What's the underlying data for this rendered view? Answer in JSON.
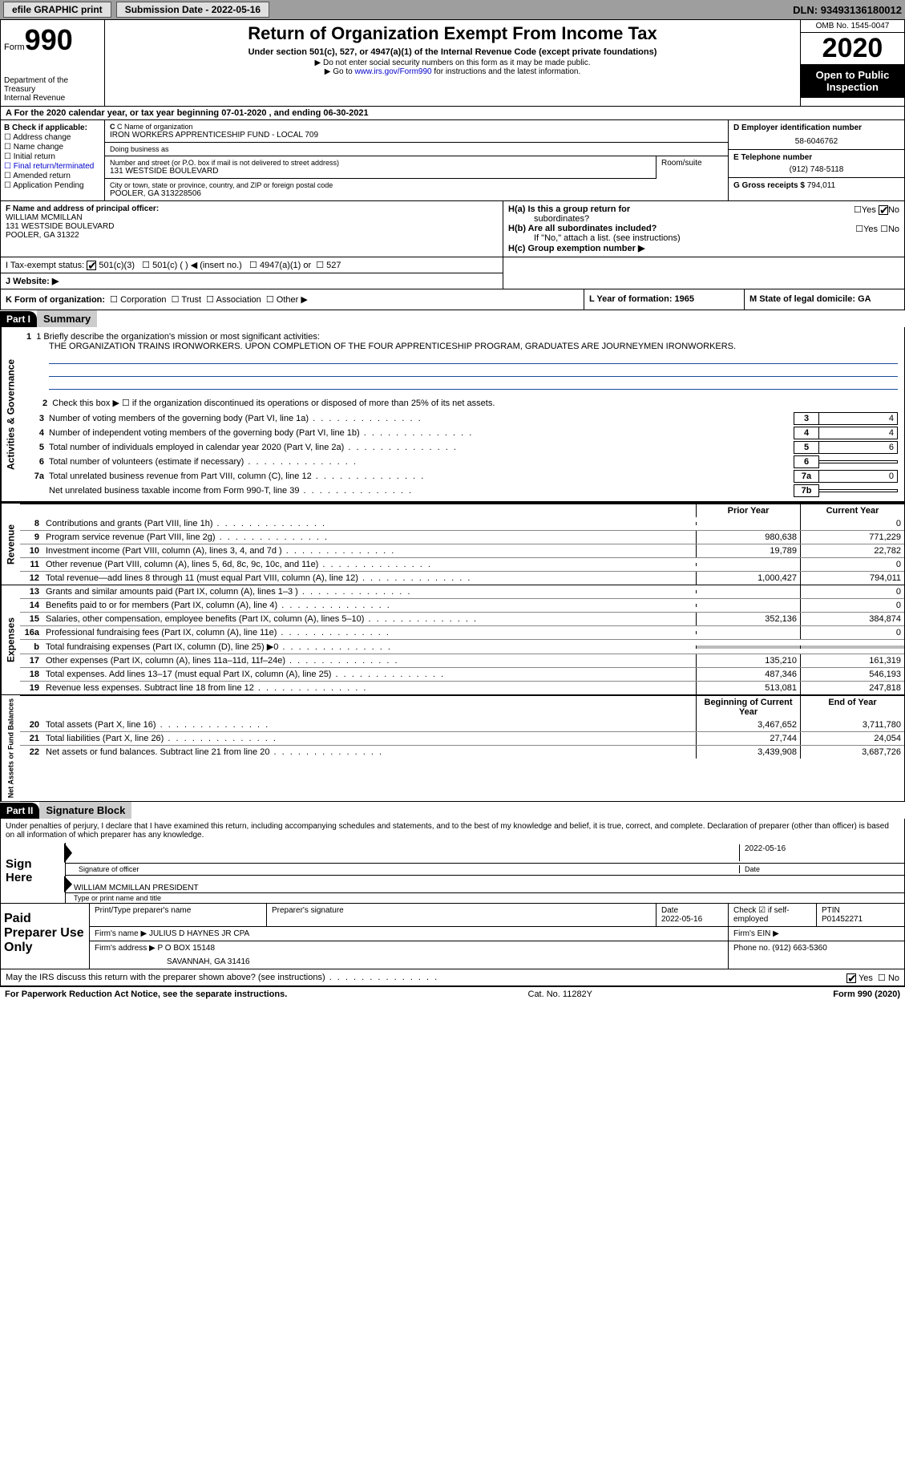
{
  "topbar": {
    "efile": "efile GRAPHIC print",
    "submission_label": "Submission Date - ",
    "submission_date": "2022-05-16",
    "dln_label": "DLN: ",
    "dln": "93493136180012"
  },
  "header": {
    "form_word": "Form",
    "form_num": "990",
    "dept1": "Department of the",
    "dept2": "Treasury",
    "dept3": "Internal Revenue",
    "title": "Return of Organization Exempt From Income Tax",
    "sub1": "Under section 501(c), 527, or 4947(a)(1) of the Internal Revenue Code (except private foundations)",
    "sub2": "▶ Do not enter social security numbers on this form as it may be made public.",
    "sub3a": "▶ Go to ",
    "sub3_link": "www.irs.gov/Form990",
    "sub3b": " for instructions and the latest information.",
    "omb": "OMB No. 1545-0047",
    "year": "2020",
    "inspect1": "Open to Public",
    "inspect2": "Inspection"
  },
  "rowA": "A For the 2020 calendar year, or tax year beginning 07-01-2020   , and ending 06-30-2021",
  "boxB": {
    "title": "B Check if applicable:",
    "opts": [
      "Address change",
      "Name change",
      "Initial return",
      "Final return/terminated",
      "Amended return",
      "Application Pending"
    ]
  },
  "boxC": {
    "lbl_name": "C Name of organization",
    "org_name": "IRON WORKERS APPRENTICESHIP FUND - LOCAL 709",
    "lbl_dba": "Doing business as",
    "dba": "",
    "lbl_addr": "Number and street (or P.O. box if mail is not delivered to street address)",
    "addr": "131 WESTSIDE BOULEVARD",
    "lbl_room": "Room/suite",
    "room": "",
    "lbl_city": "City or town, state or province, country, and ZIP or foreign postal code",
    "city": "POOLER, GA  313228506"
  },
  "boxD": {
    "lbl_ein": "D Employer identification number",
    "ein": "58-6046762",
    "lbl_tel": "E Telephone number",
    "tel": "(912) 748-5118",
    "lbl_gross": "G Gross receipts $ ",
    "gross": "794,011"
  },
  "boxF": {
    "lbl": "F  Name and address of principal officer:",
    "name": "WILLIAM MCMILLAN",
    "addr1": "131 WESTSIDE BOULEVARD",
    "addr2": "POOLER, GA  31322"
  },
  "boxH": {
    "ha": "H(a)  Is this a group return for",
    "ha2": "subordinates?",
    "hb": "H(b)  Are all subordinates included?",
    "hb_note": "If \"No,\" attach a list. (see instructions)",
    "hc": "H(c)  Group exemption number ▶",
    "yes": "Yes",
    "no": "No"
  },
  "rowI": {
    "lbl": "I    Tax-exempt status:",
    "o1": "501(c)(3)",
    "o2": "501(c) (  ) ◀ (insert no.)",
    "o3": "4947(a)(1) or",
    "o4": "527"
  },
  "rowJ": "J   Website: ▶",
  "rowK": {
    "k": "K Form of organization:",
    "opts": [
      "Corporation",
      "Trust",
      "Association",
      "Other ▶"
    ],
    "l": "L Year of formation: 1965",
    "m": "M State of legal domicile: GA"
  },
  "part1": {
    "hdr": "Part I",
    "title": "Summary",
    "q1_lbl": "1  Briefly describe the organization's mission or most significant activities:",
    "q1_text": "THE ORGANIZATION TRAINS IRONWORKERS. UPON COMPLETION OF THE FOUR APPRENTICESHIP PROGRAM, GRADUATES ARE JOURNEYMEN IRONWORKERS.",
    "q2": "Check this box ▶ ☐  if the organization discontinued its operations or disposed of more than 25% of its net assets.",
    "gov_lines": [
      {
        "n": "3",
        "t": "Number of voting members of the governing body (Part VI, line 1a)",
        "box": "3",
        "v": "4"
      },
      {
        "n": "4",
        "t": "Number of independent voting members of the governing body (Part VI, line 1b)",
        "box": "4",
        "v": "4"
      },
      {
        "n": "5",
        "t": "Total number of individuals employed in calendar year 2020 (Part V, line 2a)",
        "box": "5",
        "v": "6"
      },
      {
        "n": "6",
        "t": "Total number of volunteers (estimate if necessary)",
        "box": "6",
        "v": ""
      },
      {
        "n": "7a",
        "t": "Total unrelated business revenue from Part VIII, column (C), line 12",
        "box": "7a",
        "v": "0"
      },
      {
        "n": "",
        "t": "Net unrelated business taxable income from Form 990-T, line 39",
        "box": "7b",
        "v": ""
      }
    ],
    "col_prior": "Prior Year",
    "col_curr": "Current Year",
    "revenue": [
      {
        "n": "8",
        "t": "Contributions and grants (Part VIII, line 1h)",
        "p": "",
        "c": "0"
      },
      {
        "n": "9",
        "t": "Program service revenue (Part VIII, line 2g)",
        "p": "980,638",
        "c": "771,229"
      },
      {
        "n": "10",
        "t": "Investment income (Part VIII, column (A), lines 3, 4, and 7d )",
        "p": "19,789",
        "c": "22,782"
      },
      {
        "n": "11",
        "t": "Other revenue (Part VIII, column (A), lines 5, 6d, 8c, 9c, 10c, and 11e)",
        "p": "",
        "c": "0"
      },
      {
        "n": "12",
        "t": "Total revenue—add lines 8 through 11 (must equal Part VIII, column (A), line 12)",
        "p": "1,000,427",
        "c": "794,011"
      }
    ],
    "expenses": [
      {
        "n": "13",
        "t": "Grants and similar amounts paid (Part IX, column (A), lines 1–3 )",
        "p": "",
        "c": "0"
      },
      {
        "n": "14",
        "t": "Benefits paid to or for members (Part IX, column (A), line 4)",
        "p": "",
        "c": "0"
      },
      {
        "n": "15",
        "t": "Salaries, other compensation, employee benefits (Part IX, column (A), lines 5–10)",
        "p": "352,136",
        "c": "384,874"
      },
      {
        "n": "16a",
        "t": "Professional fundraising fees (Part IX, column (A), line 11e)",
        "p": "",
        "c": "0"
      },
      {
        "n": "b",
        "t": "Total fundraising expenses (Part IX, column (D), line 25) ▶0",
        "p": "SHADE",
        "c": "SHADE"
      },
      {
        "n": "17",
        "t": "Other expenses (Part IX, column (A), lines 11a–11d, 11f–24e)",
        "p": "135,210",
        "c": "161,319"
      },
      {
        "n": "18",
        "t": "Total expenses. Add lines 13–17 (must equal Part IX, column (A), line 25)",
        "p": "487,346",
        "c": "546,193"
      },
      {
        "n": "19",
        "t": "Revenue less expenses. Subtract line 18 from line 12",
        "p": "513,081",
        "c": "247,818"
      }
    ],
    "col_beg": "Beginning of Current Year",
    "col_end": "End of Year",
    "netassets": [
      {
        "n": "20",
        "t": "Total assets (Part X, line 16)",
        "p": "3,467,652",
        "c": "3,711,780"
      },
      {
        "n": "21",
        "t": "Total liabilities (Part X, line 26)",
        "p": "27,744",
        "c": "24,054"
      },
      {
        "n": "22",
        "t": "Net assets or fund balances. Subtract line 21 from line 20",
        "p": "3,439,908",
        "c": "3,687,726"
      }
    ],
    "vtab_gov": "Activities & Governance",
    "vtab_rev": "Revenue",
    "vtab_exp": "Expenses",
    "vtab_net": "Net Assets or Fund Balances"
  },
  "part2": {
    "hdr": "Part II",
    "title": "Signature Block",
    "decl": "Under penalties of perjury, I declare that I have examined this return, including accompanying schedules and statements, and to the best of my knowledge and belief, it is true, correct, and complete. Declaration of preparer (other than officer) is based on all information of which preparer has any knowledge.",
    "sign_here": "Sign Here",
    "sig_officer": "Signature of officer",
    "sig_date": "2022-05-16",
    "date_lbl": "Date",
    "officer_name": "WILLIAM MCMILLAN  PRESIDENT",
    "type_name": "Type or print name and title",
    "paid_prep": "Paid Preparer Use Only",
    "prep_name_lbl": "Print/Type preparer's name",
    "prep_name": "",
    "prep_sig_lbl": "Preparer's signature",
    "prep_date_lbl": "Date",
    "prep_date": "2022-05-16",
    "check_self": "Check ☑ if self-employed",
    "ptin_lbl": "PTIN",
    "ptin": "P01452271",
    "firm_name_lbl": "Firm's name    ▶ ",
    "firm_name": "JULIUS D HAYNES JR CPA",
    "firm_ein_lbl": "Firm's EIN ▶",
    "firm_addr_lbl": "Firm's address ▶ ",
    "firm_addr1": "P O BOX 15148",
    "firm_addr2": "SAVANNAH, GA  31416",
    "firm_phone_lbl": "Phone no. ",
    "firm_phone": "(912) 663-5360",
    "discuss": "May the IRS discuss this return with the preparer shown above? (see instructions)",
    "yes": "Yes",
    "no": "No"
  },
  "footer": {
    "left": "For Paperwork Reduction Act Notice, see the separate instructions.",
    "mid": "Cat. No. 11282Y",
    "right": "Form 990 (2020)"
  }
}
